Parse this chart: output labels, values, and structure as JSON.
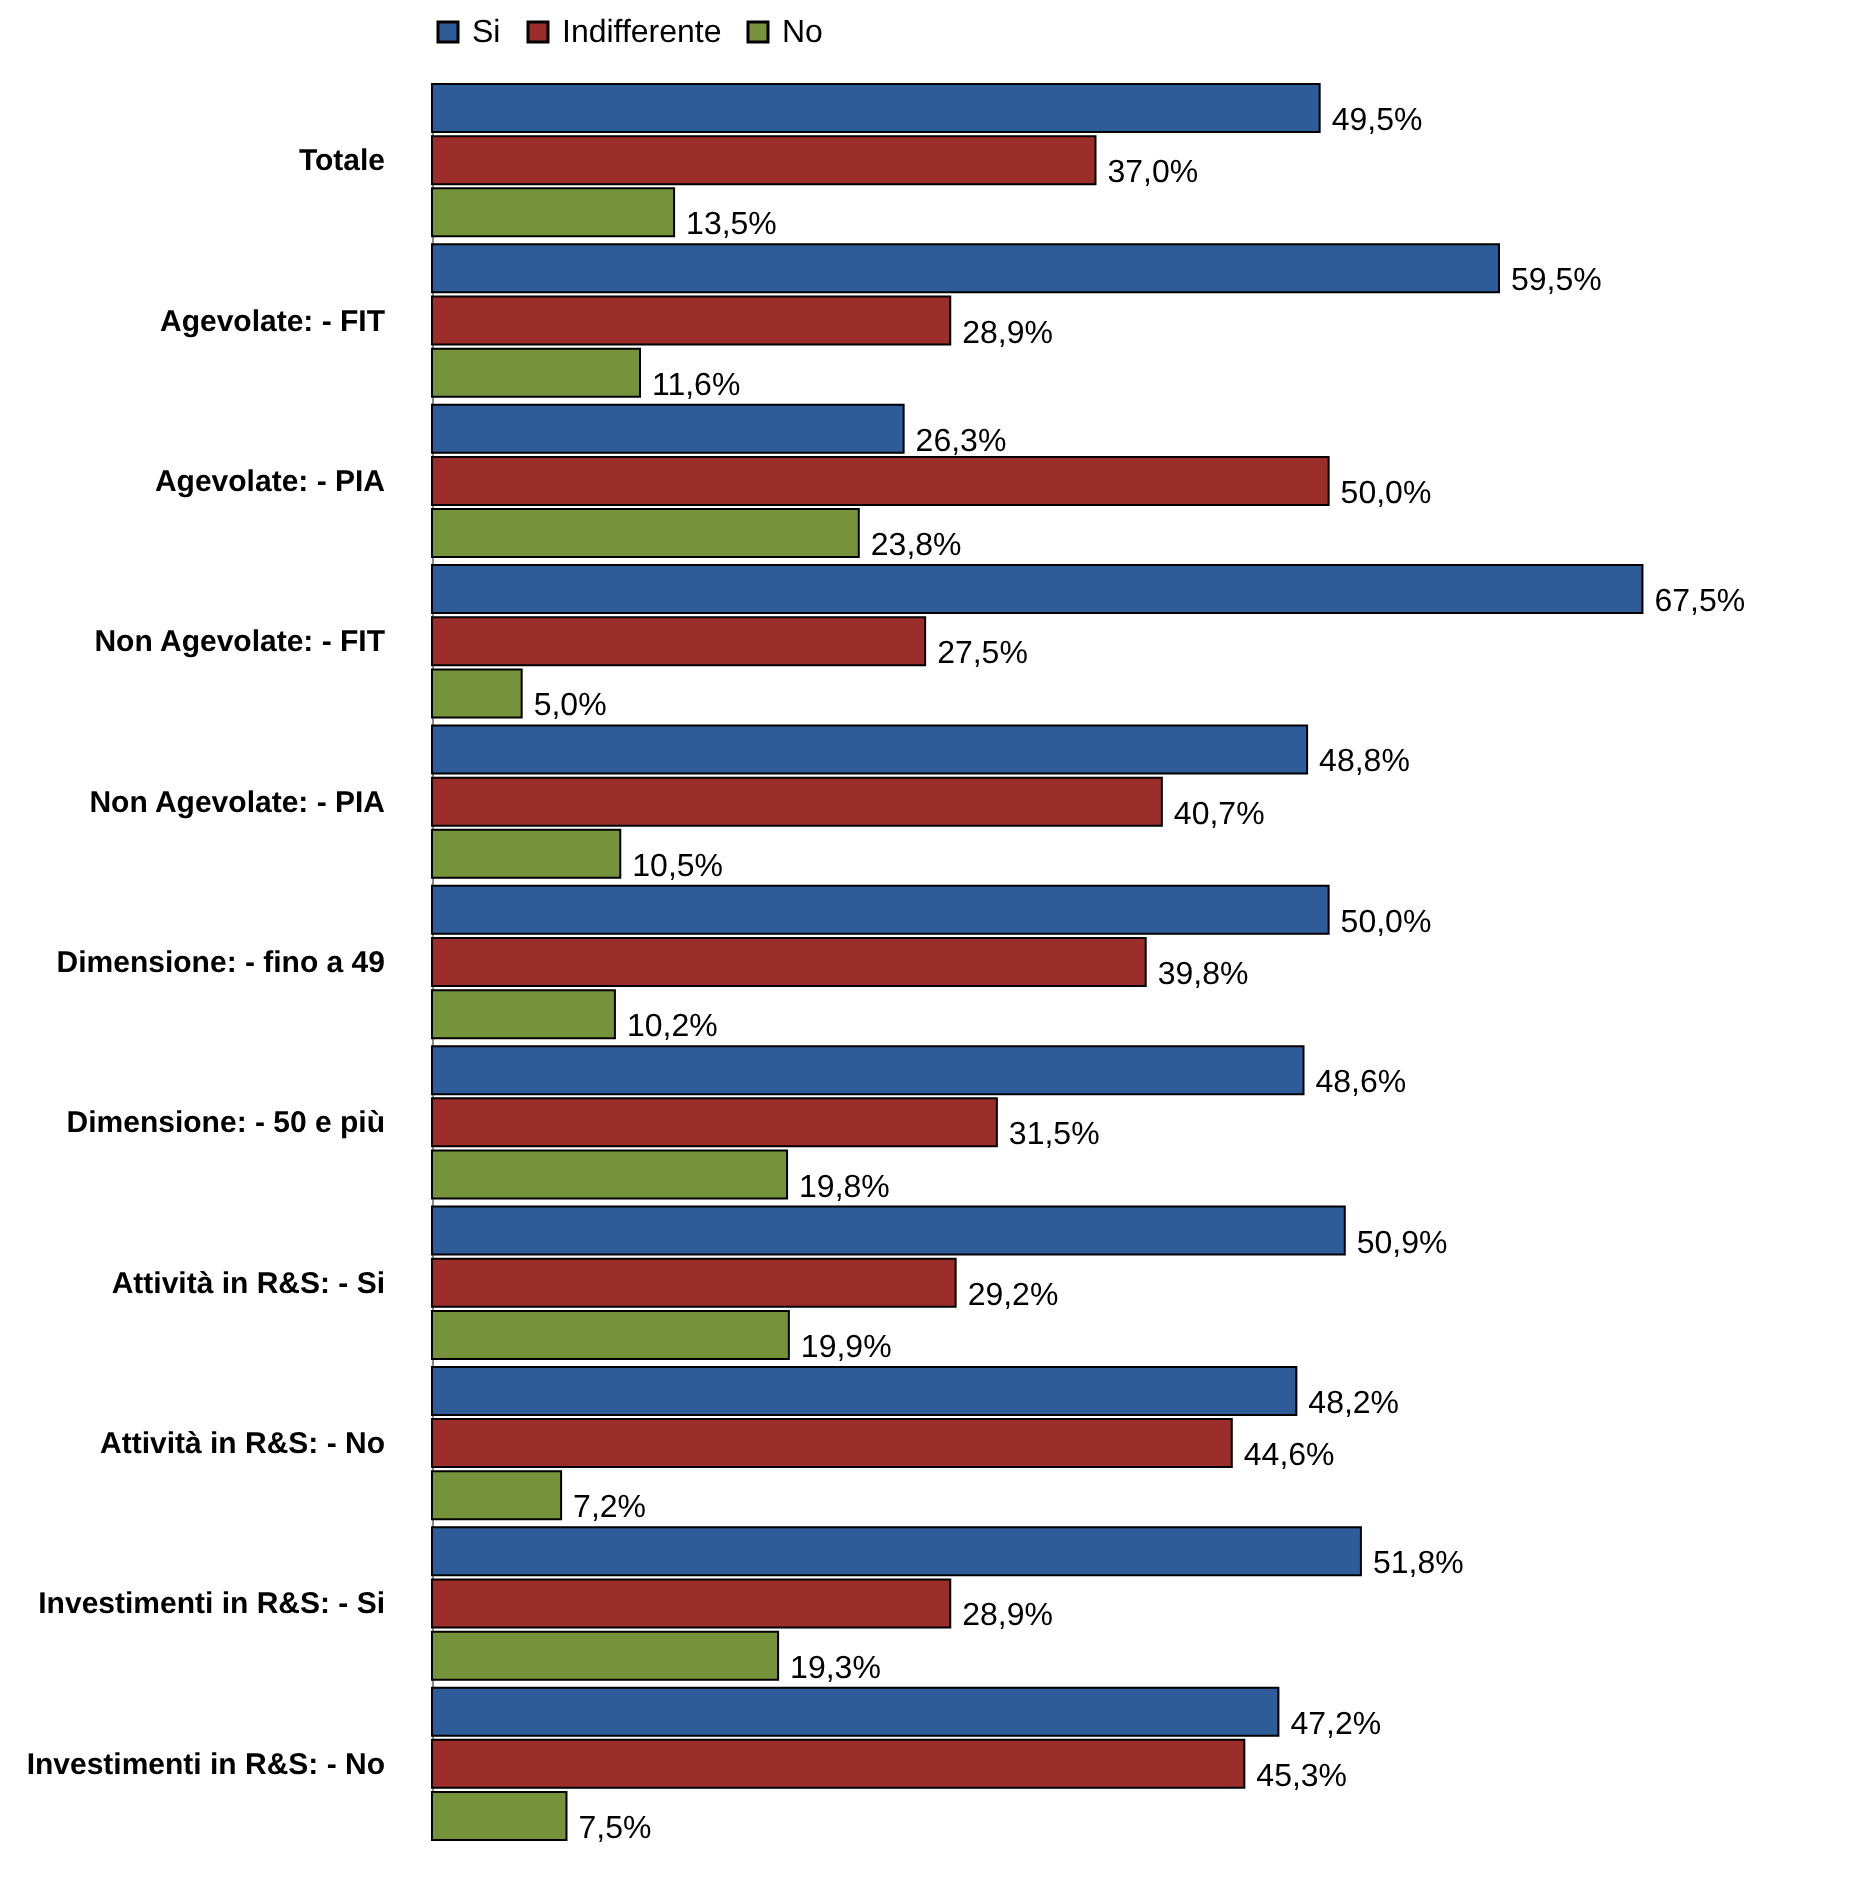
{
  "chart_data": {
    "type": "bar",
    "orientation": "horizontal",
    "legend": "top",
    "grid": false,
    "tick_labels": "y",
    "categories": [
      "Totale",
      "Agevolate:  - FIT",
      "Agevolate:  - PIA",
      "Non Agevolate:  - FIT",
      "Non Agevolate:  - PIA",
      "Dimensione:  - fino a 49",
      "Dimensione:  - 50 e più",
      "Attività in R&S:  - Si",
      "Attività in R&S:  - No",
      "Investimenti in R&S:  - Si",
      "Investimenti in R&S:  - No"
    ],
    "series": [
      {
        "name": "Si",
        "color": "#2e5c99",
        "values": [
          49.5,
          59.5,
          26.3,
          67.5,
          48.8,
          50.0,
          48.6,
          50.9,
          48.2,
          51.8,
          47.2
        ],
        "value_labels": [
          "49,5%",
          "59,5%",
          "26,3%",
          "67,5%",
          "48,8%",
          "50,0%",
          "48,6%",
          "50,9%",
          "48,2%",
          "51,8%",
          "47,2%"
        ]
      },
      {
        "name": "Indifferente",
        "color": "#9b2d2b",
        "values": [
          37.0,
          28.9,
          50.0,
          27.5,
          40.7,
          39.8,
          31.5,
          29.2,
          44.6,
          28.9,
          45.3
        ],
        "value_labels": [
          "37,0%",
          "28,9%",
          "50,0%",
          "27,5%",
          "40,7%",
          "39,8%",
          "31,5%",
          "29,2%",
          "44,6%",
          "28,9%",
          "45,3%"
        ]
      },
      {
        "name": "No",
        "color": "#76933c",
        "values": [
          13.5,
          11.6,
          23.8,
          5.0,
          10.5,
          10.2,
          19.8,
          19.9,
          7.2,
          19.3,
          7.5
        ],
        "value_labels": [
          "13,5%",
          "11,6%",
          "23,8%",
          "5,0%",
          "10,5%",
          "10,2%",
          "19,8%",
          "19,9%",
          "7,2%",
          "19,3%",
          "7,5%"
        ]
      }
    ]
  }
}
